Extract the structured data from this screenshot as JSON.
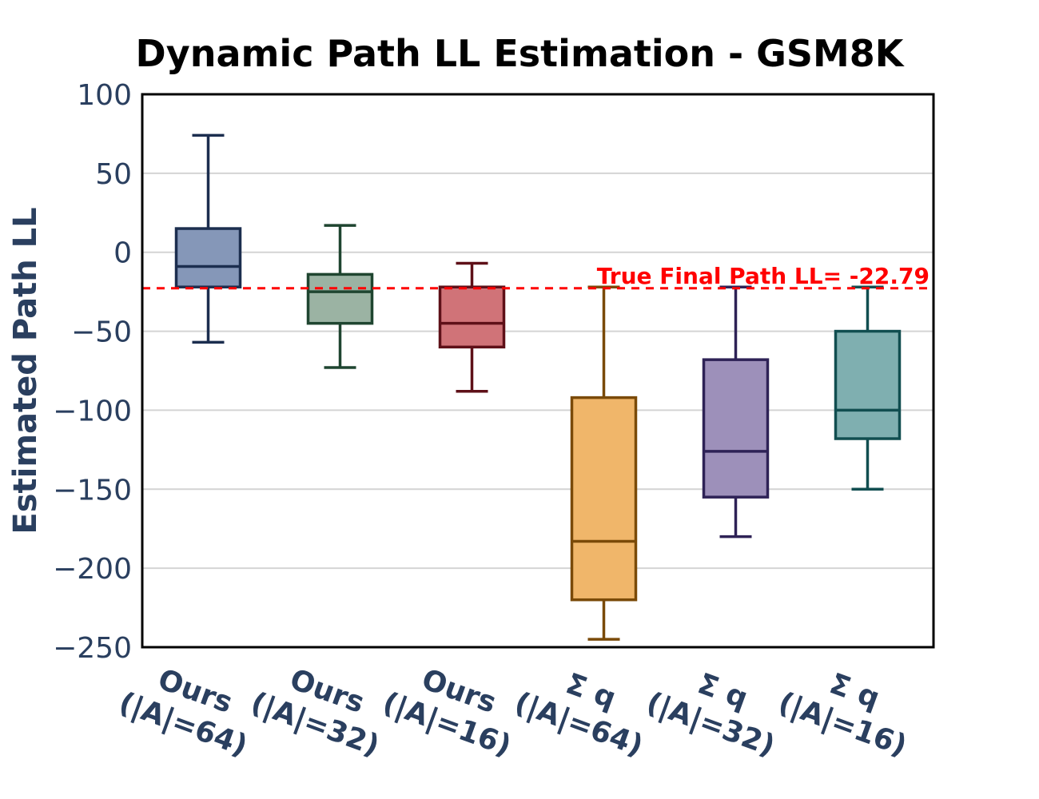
{
  "chart_data": {
    "type": "box",
    "title": "Dynamic Path LL Estimation - GSM8K",
    "xlabel": "",
    "ylabel": "Estimated Path LL",
    "ylim": [
      -250,
      100
    ],
    "yticks": [
      100,
      50,
      0,
      -50,
      -100,
      -150,
      -200,
      -250
    ],
    "ytick_labels": [
      "100",
      "50",
      "0",
      "−50",
      "−100",
      "−150",
      "−200",
      "−250"
    ],
    "grid": true,
    "reference_line": {
      "value": -22.79,
      "label": "True Final Path LL= -22.79",
      "color": "#ff0000",
      "style": "dashed"
    },
    "boxes": [
      {
        "label_line1": "Ours",
        "label_line2": "(|A|=64)",
        "whisker_low": -57,
        "q1": -22,
        "median": -9,
        "q3": 15,
        "whisker_high": 74,
        "fill": "#8597b8",
        "stroke": "#1c2e4f"
      },
      {
        "label_line1": "Ours",
        "label_line2": "(|A|=32)",
        "whisker_low": -73,
        "q1": -45,
        "median": -25,
        "q3": -14,
        "whisker_high": 17,
        "fill": "#9bb3a3",
        "stroke": "#1f4530"
      },
      {
        "label_line1": "Ours",
        "label_line2": "(|A|=16)",
        "whisker_low": -88,
        "q1": -60,
        "median": -45,
        "q3": -22,
        "whisker_high": -7,
        "fill": "#d07378",
        "stroke": "#5e1018"
      },
      {
        "label_line1": "Σ q",
        "label_line2": "(|A|=64)",
        "whisker_low": -245,
        "q1": -220,
        "median": -183,
        "q3": -92,
        "whisker_high": -22,
        "fill": "#f0b66a",
        "stroke": "#7a4a08"
      },
      {
        "label_line1": "Σ q",
        "label_line2": "(|A|=32)",
        "whisker_low": -180,
        "q1": -155,
        "median": -126,
        "q3": -68,
        "whisker_high": -22,
        "fill": "#9d90ba",
        "stroke": "#2e2256"
      },
      {
        "label_line1": "Σ q",
        "label_line2": "(|A|=16)",
        "whisker_low": -150,
        "q1": -118,
        "median": -100,
        "q3": -50,
        "whisker_high": -22,
        "fill": "#7fafb0",
        "stroke": "#114e50"
      }
    ]
  }
}
